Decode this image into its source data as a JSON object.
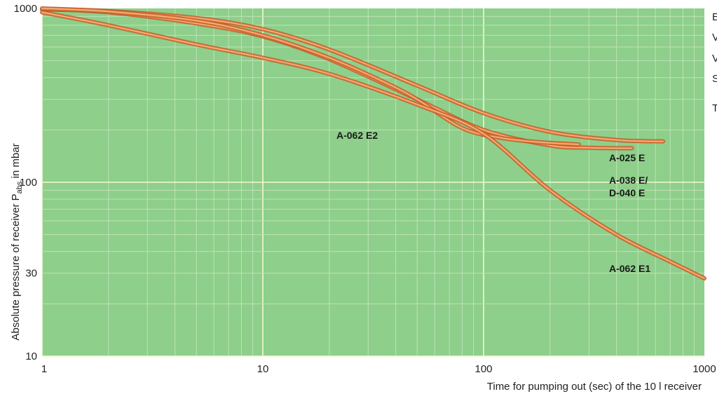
{
  "chart_data": {
    "type": "line",
    "xlabel": "Time for pumping out (sec) of the 10 l receiver",
    "ylabel_main": "Absolute pressure of receiver P",
    "ylabel_sub": "abs",
    "ylabel_tail": " in mbar",
    "x_scale": "log",
    "y_scale": "log",
    "xlim": [
      1,
      1000
    ],
    "ylim": [
      10,
      1000
    ],
    "x_ticks": [
      1,
      10,
      100,
      1000
    ],
    "x_tick_labels": [
      "1",
      "10",
      "100",
      "1000"
    ],
    "y_ticks": [
      10,
      30,
      100,
      1000
    ],
    "y_tick_labels": [
      "10",
      "30",
      "100",
      "1000"
    ],
    "grid": true,
    "background_color": "#8ecf8b",
    "line_color": "#e07a3c",
    "series": [
      {
        "name": "A-025 E",
        "x": [
          1,
          2,
          5,
          10,
          20,
          50,
          100,
          200,
          400,
          650
        ],
        "y": [
          990,
          965,
          880,
          760,
          580,
          360,
          250,
          195,
          175,
          172
        ]
      },
      {
        "name": "A-038 E/ D-040 E",
        "x": [
          1,
          2,
          5,
          10,
          20,
          50,
          100,
          200,
          300,
          470
        ],
        "y": [
          990,
          950,
          820,
          690,
          510,
          300,
          200,
          163,
          158,
          157
        ]
      },
      {
        "name": "A-062 E2",
        "x": [
          1,
          2,
          5,
          10,
          20,
          35,
          50,
          80,
          120,
          180,
          270
        ],
        "y": [
          1000,
          960,
          850,
          700,
          520,
          380,
          300,
          205,
          180,
          170,
          165
        ]
      },
      {
        "name": "A-062 E1",
        "x": [
          1,
          2,
          5,
          10,
          20,
          50,
          100,
          200,
          400,
          700,
          1000
        ],
        "y": [
          950,
          800,
          620,
          520,
          420,
          280,
          190,
          90,
          50,
          35,
          28
        ]
      }
    ],
    "labels": [
      {
        "text": "A-025 E",
        "series": 0
      },
      {
        "text": "A-038 E/",
        "series": 1
      },
      {
        "text": "D-040 E",
        "series": 1
      },
      {
        "text": "A-062 E2",
        "series": 2
      },
      {
        "text": "A-062 E1",
        "series": 3
      }
    ]
  },
  "right_text": [
    "E",
    "V",
    "V",
    "S",
    "T"
  ]
}
